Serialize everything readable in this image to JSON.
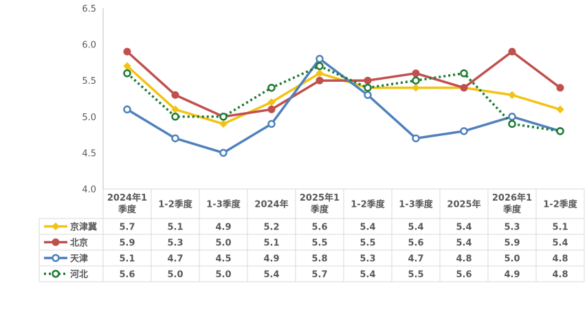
{
  "chart_data": {
    "type": "line",
    "title": "",
    "xlabel": "",
    "ylabel": "",
    "ylim": [
      4.0,
      6.5
    ],
    "yticks": [
      "4.0",
      "4.5",
      "5.0",
      "5.5",
      "6.0",
      "6.5"
    ],
    "categories": [
      [
        "2024年1",
        "季度"
      ],
      [
        "1-2季度"
      ],
      [
        "1-3季度"
      ],
      [
        "2024年"
      ],
      [
        "2025年1",
        "季度"
      ],
      [
        "1-2季度"
      ],
      [
        "1-3季度"
      ],
      [
        "2025年"
      ],
      [
        "2026年1",
        "季度"
      ],
      [
        "1-2季度"
      ]
    ],
    "legend": "data-table",
    "grid": false,
    "series": [
      {
        "name": "京津冀",
        "color": "#F2C314",
        "marker": "diamond",
        "style": "solid",
        "values": [
          5.7,
          5.1,
          4.9,
          5.2,
          5.6,
          5.4,
          5.4,
          5.4,
          5.3,
          5.1
        ],
        "labels": [
          "5.7",
          "5.1",
          "4.9",
          "5.2",
          "5.6",
          "5.4",
          "5.4",
          "5.4",
          "5.3",
          "5.1"
        ]
      },
      {
        "name": "北京",
        "color": "#C0504D",
        "marker": "circle-filled",
        "style": "solid",
        "values": [
          5.9,
          5.3,
          5.0,
          5.1,
          5.5,
          5.5,
          5.6,
          5.4,
          5.9,
          5.4
        ],
        "labels": [
          "5.9",
          "5.3",
          "5.0",
          "5.1",
          "5.5",
          "5.5",
          "5.6",
          "5.4",
          "5.9",
          "5.4"
        ]
      },
      {
        "name": "天津",
        "color": "#4F81BD",
        "marker": "circle-open",
        "style": "solid",
        "values": [
          5.1,
          4.7,
          4.5,
          4.9,
          5.8,
          5.3,
          4.7,
          4.8,
          5.0,
          4.8
        ],
        "labels": [
          "5.1",
          "4.7",
          "4.5",
          "4.9",
          "5.8",
          "5.3",
          "4.7",
          "4.8",
          "5.0",
          "4.8"
        ]
      },
      {
        "name": "河北",
        "color": "#1E7B34",
        "marker": "circle-open",
        "style": "dotted",
        "values": [
          5.6,
          5.0,
          5.0,
          5.4,
          5.7,
          5.4,
          5.5,
          5.6,
          4.9,
          4.8
        ],
        "labels": [
          "5.6",
          "5.0",
          "5.0",
          "5.4",
          "5.7",
          "5.4",
          "5.5",
          "5.6",
          "4.9",
          "4.8"
        ]
      }
    ]
  }
}
